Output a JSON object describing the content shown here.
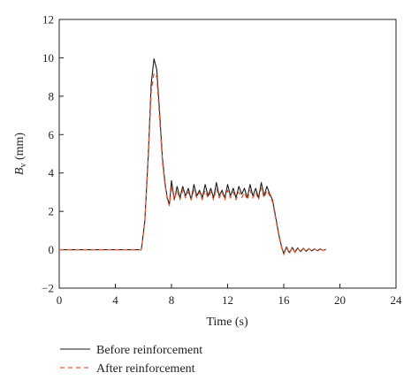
{
  "chart_data": {
    "type": "line",
    "xlabel": "Time (s)",
    "ylabel_main": "B",
    "ylabel_sub": "v",
    "ylabel_unit": " (mm)",
    "xlim": [
      0,
      24
    ],
    "ylim": [
      -2,
      12
    ],
    "x_ticks": [
      0,
      4,
      8,
      12,
      16,
      20,
      24
    ],
    "y_ticks": [
      -2,
      0,
      2,
      4,
      6,
      8,
      10,
      12
    ],
    "grid": false,
    "legend_position": "bottom-left, below plot",
    "series": [
      {
        "name": "Before reinforcement",
        "color": "#1a1a1a",
        "dash": "solid",
        "x": [
          0,
          5.85,
          6.1,
          6.35,
          6.55,
          6.75,
          6.95,
          7.15,
          7.35,
          7.55,
          7.7,
          7.85,
          8.0,
          8.2,
          8.4,
          8.6,
          8.8,
          9.0,
          9.2,
          9.4,
          9.6,
          9.8,
          10.0,
          10.2,
          10.4,
          10.6,
          10.8,
          11.0,
          11.2,
          11.4,
          11.6,
          11.8,
          12.0,
          12.2,
          12.4,
          12.6,
          12.8,
          13.0,
          13.2,
          13.4,
          13.6,
          13.8,
          14.0,
          14.2,
          14.4,
          14.6,
          14.8,
          15.0,
          15.2,
          15.45,
          15.7,
          15.85,
          16.0,
          16.2,
          16.4,
          16.6,
          16.8,
          17.0,
          17.2,
          17.4,
          17.6,
          17.8,
          18.0,
          18.2,
          18.4,
          18.6,
          18.8,
          19.0
        ],
        "y": [
          0,
          0,
          1.5,
          5.0,
          8.6,
          9.95,
          9.4,
          7.2,
          4.8,
          3.4,
          2.7,
          2.35,
          3.6,
          2.6,
          3.3,
          2.7,
          3.3,
          2.8,
          3.2,
          2.6,
          3.4,
          2.8,
          3.1,
          2.7,
          3.4,
          2.8,
          3.2,
          2.7,
          3.5,
          2.8,
          3.1,
          2.7,
          3.4,
          2.8,
          3.2,
          2.7,
          3.3,
          2.9,
          3.2,
          2.7,
          3.4,
          2.8,
          3.2,
          2.7,
          3.5,
          2.8,
          3.3,
          2.9,
          2.6,
          1.6,
          0.6,
          0.15,
          -0.2,
          0.15,
          -0.15,
          0.12,
          -0.12,
          0.1,
          -0.1,
          0.08,
          -0.08,
          0.06,
          -0.06,
          0.05,
          -0.05,
          0.04,
          -0.03,
          0.02
        ]
      },
      {
        "name": "After reinforcement",
        "color": "#e85a35",
        "dash": "dashed",
        "x": [
          0,
          5.85,
          6.1,
          6.35,
          6.55,
          6.75,
          6.95,
          7.15,
          7.35,
          7.55,
          7.7,
          7.85,
          8.0,
          8.2,
          8.4,
          8.6,
          8.8,
          9.0,
          9.2,
          9.4,
          9.6,
          9.8,
          10.0,
          10.2,
          10.4,
          10.6,
          10.8,
          11.0,
          11.2,
          11.4,
          11.6,
          11.8,
          12.0,
          12.2,
          12.4,
          12.6,
          12.8,
          13.0,
          13.2,
          13.4,
          13.6,
          13.8,
          14.0,
          14.2,
          14.4,
          14.6,
          14.8,
          15.0,
          15.2,
          15.45,
          15.7,
          15.85,
          16.0,
          16.2,
          16.4,
          16.6,
          16.8,
          17.0,
          17.2,
          17.4,
          17.6,
          17.8,
          18.0,
          18.2,
          18.4,
          18.6,
          18.8,
          19.0
        ],
        "y": [
          0,
          0,
          1.4,
          4.8,
          8.2,
          9.2,
          9.0,
          6.9,
          4.6,
          3.3,
          2.6,
          2.3,
          3.3,
          2.6,
          3.1,
          2.6,
          3.1,
          2.7,
          3.0,
          2.6,
          3.1,
          2.7,
          3.0,
          2.6,
          3.1,
          2.7,
          3.0,
          2.6,
          3.2,
          2.7,
          3.0,
          2.6,
          3.1,
          2.7,
          3.0,
          2.6,
          3.0,
          2.7,
          3.0,
          2.6,
          3.1,
          2.7,
          3.0,
          2.6,
          3.2,
          2.7,
          3.1,
          2.8,
          2.5,
          1.5,
          0.55,
          0.1,
          -0.25,
          0.1,
          -0.2,
          0.1,
          -0.15,
          0.08,
          -0.12,
          0.06,
          -0.1,
          0.05,
          -0.08,
          0.04,
          -0.06,
          0.03,
          -0.04,
          0.02
        ]
      }
    ]
  }
}
